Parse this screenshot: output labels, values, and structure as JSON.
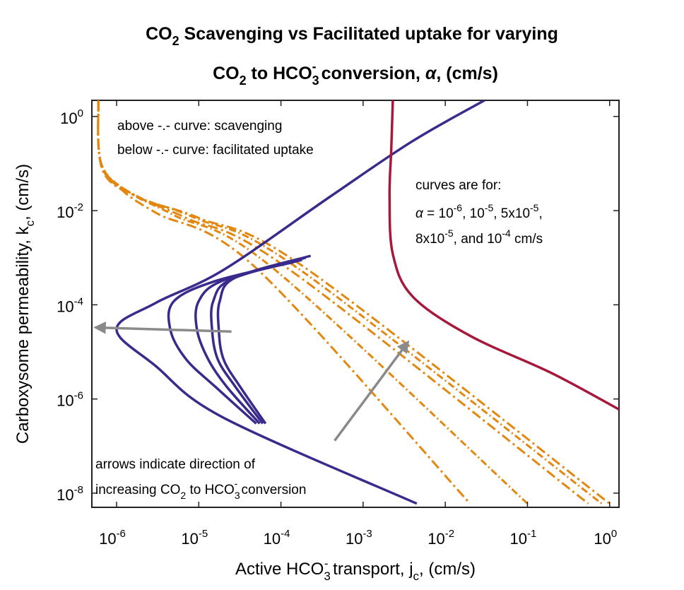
{
  "chart_data": {
    "type": "line",
    "title_line1": {
      "pre": "CO",
      "sub": "2",
      "post": " Scavenging vs Facilitated uptake for varying"
    },
    "title_line2": {
      "a": "CO",
      "a_sub": "2",
      "b": " to HCO",
      "b_sub": "3",
      "b_sup": "-",
      "c": " conversion, ",
      "alpha": "α",
      "d": ", (cm/s)"
    },
    "xlabel": {
      "pre": "Active HCO",
      "sub1": "3",
      "sup1": "-",
      "mid": " transport, j",
      "sub2": "c",
      "post": ", (cm/s)"
    },
    "ylabel": {
      "pre": "Carboxysome permeability, k",
      "sub": "c",
      "post": ", (cm/s)"
    },
    "xscale": "log",
    "yscale": "log",
    "xlim": [
      5e-07,
      1.3
    ],
    "ylim": [
      5e-09,
      2.2
    ],
    "x_ticks": [
      {
        "base": "10",
        "exp": "-6",
        "value": 1e-06
      },
      {
        "base": "10",
        "exp": "-5",
        "value": 1e-05
      },
      {
        "base": "10",
        "exp": "-4",
        "value": 0.0001
      },
      {
        "base": "10",
        "exp": "-3",
        "value": 0.001
      },
      {
        "base": "10",
        "exp": "-2",
        "value": 0.01
      },
      {
        "base": "10",
        "exp": "-1",
        "value": 0.1
      },
      {
        "base": "10",
        "exp": "0",
        "value": 1
      }
    ],
    "y_ticks": [
      {
        "base": "10",
        "exp": "-8",
        "value": 1e-08
      },
      {
        "base": "10",
        "exp": "-6",
        "value": 1e-06
      },
      {
        "base": "10",
        "exp": "-4",
        "value": 0.0001
      },
      {
        "base": "10",
        "exp": "-2",
        "value": 0.01
      },
      {
        "base": "10",
        "exp": "0",
        "value": 1
      }
    ],
    "grid": false,
    "colors": {
      "boundary": "#3a2a8c",
      "crimson": "#a6193c",
      "dashed": "#e2870f",
      "arrow": "#8a8a8a"
    },
    "series": [
      {
        "style": "dashdot-orange",
        "points": [
          [
            6e-07,
            2.2
          ],
          [
            6.3e-07,
            0.12
          ],
          [
            1.1e-06,
            0.03
          ],
          [
            3e-06,
            0.009
          ],
          [
            5e-05,
            0.0006
          ],
          [
            0.02,
            6e-09
          ]
        ]
      },
      {
        "style": "dashdot-orange",
        "points": [
          [
            6e-07,
            2.2
          ],
          [
            6.5e-07,
            0.1
          ],
          [
            1.4e-06,
            0.025
          ],
          [
            5e-06,
            0.008
          ],
          [
            8e-05,
            0.0006
          ],
          [
            0.1,
            6e-09
          ]
        ]
      },
      {
        "style": "dashdot-orange",
        "points": [
          [
            6e-07,
            2.2
          ],
          [
            6.6e-07,
            0.09
          ],
          [
            1.6e-06,
            0.022
          ],
          [
            7e-06,
            0.007
          ],
          [
            0.00012,
            0.0006
          ],
          [
            0.55,
            6e-09
          ]
        ]
      },
      {
        "style": "dashdot-orange",
        "points": [
          [
            6e-07,
            2.2
          ],
          [
            6.7e-07,
            0.08
          ],
          [
            1.8e-06,
            0.02
          ],
          [
            9e-06,
            0.007
          ],
          [
            0.00016,
            0.0006
          ],
          [
            0.8,
            6e-09
          ]
        ]
      },
      {
        "style": "dashdot-orange",
        "points": [
          [
            6e-07,
            2.2
          ],
          [
            6.8e-07,
            0.07
          ],
          [
            2e-06,
            0.018
          ],
          [
            1e-05,
            0.007
          ],
          [
            0.0002,
            0.0006
          ],
          [
            1.0,
            6e-09
          ]
        ]
      },
      {
        "style": "solid-navy",
        "points": [
          [
            0.03,
            2.2
          ],
          [
            0.004,
            0.3
          ],
          [
            0.0004,
            0.02
          ],
          [
            2e-05,
            0.00055
          ],
          [
            3e-06,
            0.00011
          ],
          [
            1e-06,
            3e-05
          ],
          [
            3e-06,
            5e-06
          ],
          [
            2e-05,
            4e-07
          ],
          [
            0.0045,
            6e-09
          ]
        ]
      },
      {
        "style": "solid-navy",
        "points": [
          [
            0.00014,
            0.0008
          ],
          [
            1.6e-05,
            0.00032
          ],
          [
            5e-06,
            0.00012
          ],
          [
            4.5e-06,
            3e-05
          ],
          [
            7e-06,
            7e-06
          ],
          [
            1.6e-05,
            1.8e-06
          ],
          [
            5e-05,
            3e-07
          ]
        ]
      },
      {
        "style": "solid-navy",
        "points": [
          [
            0.00018,
            0.0009
          ],
          [
            2e-05,
            0.00033
          ],
          [
            1e-05,
            0.00012
          ],
          [
            9.5e-06,
            3e-05
          ],
          [
            1.3e-05,
            7e-06
          ],
          [
            2.2e-05,
            1.8e-06
          ],
          [
            5.5e-05,
            3e-07
          ]
        ]
      },
      {
        "style": "solid-navy",
        "points": [
          [
            0.0002,
            0.001
          ],
          [
            2.5e-05,
            0.00035
          ],
          [
            1.5e-05,
            0.00012
          ],
          [
            1.45e-05,
            3e-05
          ],
          [
            1.7e-05,
            7e-06
          ],
          [
            2.8e-05,
            1.8e-06
          ],
          [
            6e-05,
            3e-07
          ]
        ]
      },
      {
        "style": "solid-navy",
        "points": [
          [
            0.00023,
            0.0011
          ],
          [
            2.8e-05,
            0.00038
          ],
          [
            1.8e-05,
            0.00012
          ],
          [
            1.75e-05,
            3e-05
          ],
          [
            2e-05,
            7e-06
          ],
          [
            3.2e-05,
            1.8e-06
          ],
          [
            6.5e-05,
            3e-07
          ]
        ]
      },
      {
        "style": "solid-crimson",
        "points": [
          [
            0.0023,
            2.2
          ],
          [
            0.0022,
            0.2
          ],
          [
            0.0021,
            0.02
          ],
          [
            0.0023,
            0.0012
          ],
          [
            0.004,
            0.00015
          ],
          [
            0.02,
            2.2e-05
          ],
          [
            0.2,
            3.5e-06
          ],
          [
            1.3,
            6e-07
          ]
        ]
      }
    ],
    "arrows": [
      {
        "from": [
          2.5e-05,
          2.7e-05
        ],
        "to": [
          5.6e-07,
          3.3e-05
        ]
      },
      {
        "from": [
          0.00045,
          1.3e-07
        ],
        "to": [
          0.0035,
          1.6e-05
        ]
      }
    ],
    "annotations": {
      "regions": [
        "above -.- curve: scavenging",
        "below -.- curve: facilitated uptake"
      ],
      "curves_title": "curves are for:",
      "curves_line2": {
        "alpha": "α",
        "p1": " = 10",
        "e1": "-6",
        "p2": ", 10",
        "e2": "-5",
        "p3": ", 5x10",
        "e3": "-5",
        "p4": ","
      },
      "curves_line3": {
        "p1": "8x10",
        "e1": "-5",
        "p2": ", and 10",
        "e2": "-4",
        "p3": " cm/s"
      },
      "arrows_line1": "arrows indicate direction of",
      "arrows_line2": {
        "p1": "increasing CO",
        "s1": "2",
        "p2": " to HCO",
        "s2": "3",
        "e2": "-",
        "p3": " conversion"
      }
    }
  }
}
